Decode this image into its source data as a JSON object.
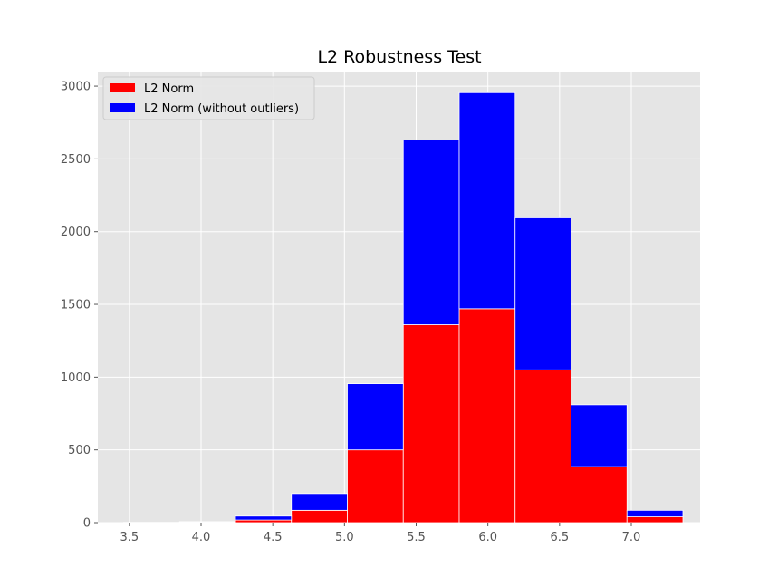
{
  "chart_data": {
    "type": "bar",
    "title": "L2 Robustness Test",
    "xlabel": "",
    "ylabel": "",
    "xlim": [
      3.28,
      7.48
    ],
    "ylim": [
      0,
      3100
    ],
    "xticks": [
      3.5,
      4.0,
      4.5,
      5.0,
      5.5,
      6.0,
      6.5,
      7.0
    ],
    "xtick_labels": [
      "3.5",
      "4.0",
      "4.5",
      "5.0",
      "5.5",
      "6.0",
      "6.5",
      "7.0"
    ],
    "yticks": [
      0,
      500,
      1000,
      1500,
      2000,
      2500,
      3000
    ],
    "ytick_labels": [
      "0",
      "500",
      "1000",
      "1500",
      "2000",
      "2500",
      "3000"
    ],
    "grid": true,
    "stacked": true,
    "legend_position": "top-left",
    "bin_edges": [
      3.46,
      3.85,
      4.24,
      4.63,
      5.02,
      5.41,
      5.8,
      6.19,
      6.58,
      6.97,
      7.36
    ],
    "series": [
      {
        "name": "L2 Norm",
        "color": "#ff0000",
        "values": [
          1,
          3,
          18,
          85,
          500,
          1360,
          1470,
          1050,
          385,
          40
        ]
      },
      {
        "name": "L2 Norm (without outliers)",
        "color": "#0000ff",
        "values": [
          1,
          4,
          27,
          115,
          455,
          1270,
          1485,
          1045,
          425,
          45
        ]
      }
    ]
  }
}
